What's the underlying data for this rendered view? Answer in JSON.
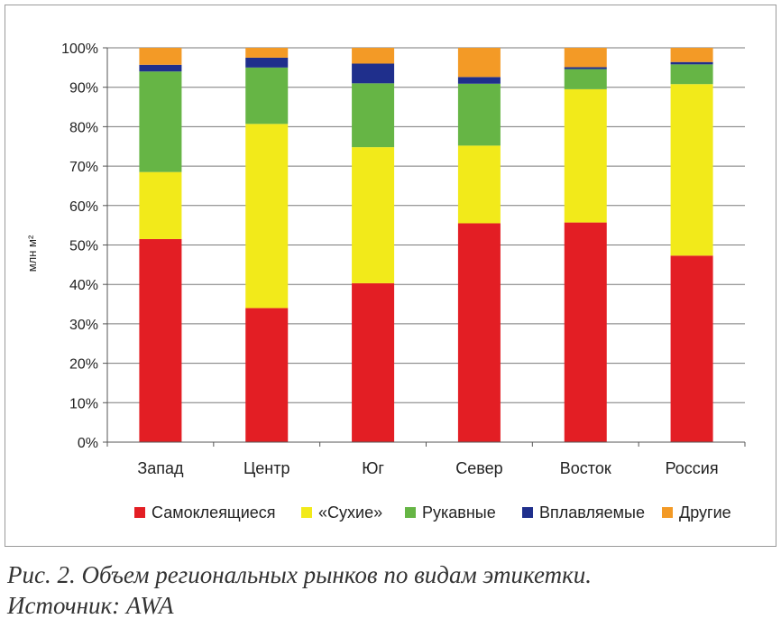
{
  "chart_data": {
    "type": "bar",
    "stacked": true,
    "categories": [
      "Запад",
      "Центр",
      "Юг",
      "Север",
      "Восток",
      "Россия"
    ],
    "series": [
      {
        "name": "Самоклеящиеся",
        "color": "#e31e24",
        "values": [
          51.5,
          34,
          40.3,
          55.5,
          55.7,
          47.3
        ]
      },
      {
        "name": "«Сухие»",
        "color": "#f2ea1a",
        "values": [
          17,
          46.7,
          34.5,
          19.7,
          33.8,
          43.5
        ]
      },
      {
        "name": "Рукавные",
        "color": "#66b545",
        "values": [
          25.5,
          14.3,
          16.2,
          15.7,
          5.1,
          5.0
        ]
      },
      {
        "name": "Вплавляемые",
        "color": "#1f2f8c",
        "values": [
          1.7,
          2.5,
          5.0,
          1.7,
          0.5,
          0.6
        ]
      },
      {
        "name": "Другие",
        "color": "#f39a26",
        "values": [
          4.3,
          2.5,
          4.0,
          7.4,
          4.9,
          3.6
        ]
      }
    ],
    "ylabel": "млн м²",
    "ylim": [
      0,
      100
    ],
    "yticks": [
      "0%",
      "10%",
      "20%",
      "30%",
      "40%",
      "50%",
      "60%",
      "70%",
      "80%",
      "90%",
      "100%"
    ],
    "grid": true,
    "legend_position": "bottom"
  },
  "caption": {
    "line1": "Рис. 2. Объем региональных рынков по видам этикетки.",
    "line2": "Источник: AWA"
  }
}
